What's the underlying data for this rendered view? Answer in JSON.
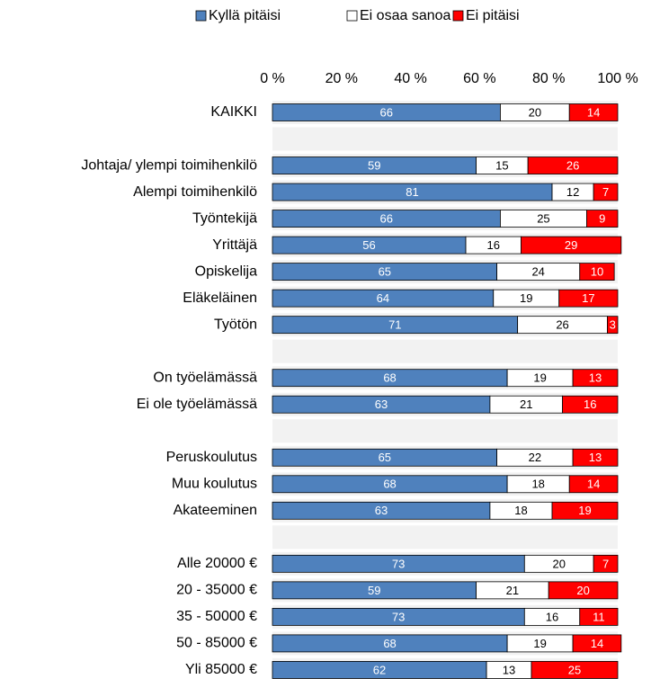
{
  "chart_data": {
    "type": "bar",
    "orientation": "horizontal",
    "stacked": true,
    "categories": [
      "KAIKKI",
      null,
      "Johtaja/ ylempi toimihenkilö",
      "Alempi toimihenkilö",
      "Työntekijä",
      "Yrittäjä",
      "Opiskelija",
      "Eläkeläinen",
      "Työtön",
      null,
      "On työelämässä",
      "Ei ole työelämässä",
      null,
      "Peruskoulutus",
      "Muu koulutus",
      "Akateeminen",
      null,
      "Alle 20000 €",
      "20 - 35000 €",
      "35 - 50000 €",
      "50 - 85000 €",
      "Yli 85000 €"
    ],
    "series": [
      {
        "name": "Kyllä pitäisi",
        "color": "#4f81bd",
        "values": [
          66,
          null,
          59,
          81,
          66,
          56,
          65,
          64,
          71,
          null,
          68,
          63,
          null,
          65,
          68,
          63,
          null,
          73,
          59,
          73,
          68,
          62
        ]
      },
      {
        "name": "Ei osaa sanoa",
        "color": "#ffffff",
        "values": [
          20,
          null,
          15,
          12,
          25,
          16,
          24,
          19,
          26,
          null,
          19,
          21,
          null,
          22,
          18,
          18,
          null,
          20,
          21,
          16,
          19,
          13
        ]
      },
      {
        "name": "Ei pitäisi",
        "color": "#ff0000",
        "values": [
          14,
          null,
          26,
          7,
          9,
          29,
          10,
          17,
          3,
          null,
          13,
          16,
          null,
          13,
          14,
          19,
          null,
          7,
          20,
          11,
          14,
          25
        ]
      }
    ],
    "xlim": [
      0,
      100
    ],
    "xticks": [
      {
        "value": 0,
        "label": "0 %"
      },
      {
        "value": 20,
        "label": "20 %"
      },
      {
        "value": 40,
        "label": "40 %"
      },
      {
        "value": 60,
        "label": "60 %"
      },
      {
        "value": 80,
        "label": "80 %"
      },
      {
        "value": 100,
        "label": "100 %"
      }
    ],
    "legend": "top"
  }
}
